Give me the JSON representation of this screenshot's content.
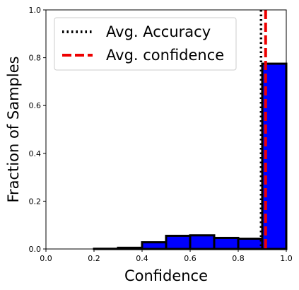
{
  "chart_data": {
    "type": "bar",
    "xlabel": "Confidence",
    "ylabel": "Fraction of Samples",
    "xlim": [
      0,
      1
    ],
    "ylim": [
      0,
      1
    ],
    "xticks": [
      "0.0",
      "0.2",
      "0.4",
      "0.6",
      "0.8",
      "1.0"
    ],
    "yticks": [
      "0.0",
      "0.2",
      "0.4",
      "0.6",
      "0.8",
      "1.0"
    ],
    "bins": [
      {
        "start": 0.0,
        "end": 0.1,
        "value": 0.0
      },
      {
        "start": 0.1,
        "end": 0.2,
        "value": 0.0
      },
      {
        "start": 0.2,
        "end": 0.3,
        "value": 0.001
      },
      {
        "start": 0.3,
        "end": 0.4,
        "value": 0.005
      },
      {
        "start": 0.4,
        "end": 0.5,
        "value": 0.028
      },
      {
        "start": 0.5,
        "end": 0.6,
        "value": 0.055
      },
      {
        "start": 0.6,
        "end": 0.7,
        "value": 0.057
      },
      {
        "start": 0.7,
        "end": 0.8,
        "value": 0.046
      },
      {
        "start": 0.8,
        "end": 0.9,
        "value": 0.043
      },
      {
        "start": 0.9,
        "end": 1.0,
        "value": 0.775
      }
    ],
    "bar_color": "#0000ff",
    "bar_edge_color": "#000000",
    "lines": [
      {
        "name": "Avg. Accuracy",
        "x": 0.895,
        "color": "#000000",
        "style": "dotted"
      },
      {
        "name": "Avg. confidence",
        "x": 0.914,
        "color": "#ee0000",
        "style": "dashed"
      }
    ],
    "legend": "top-left",
    "grid": false
  }
}
